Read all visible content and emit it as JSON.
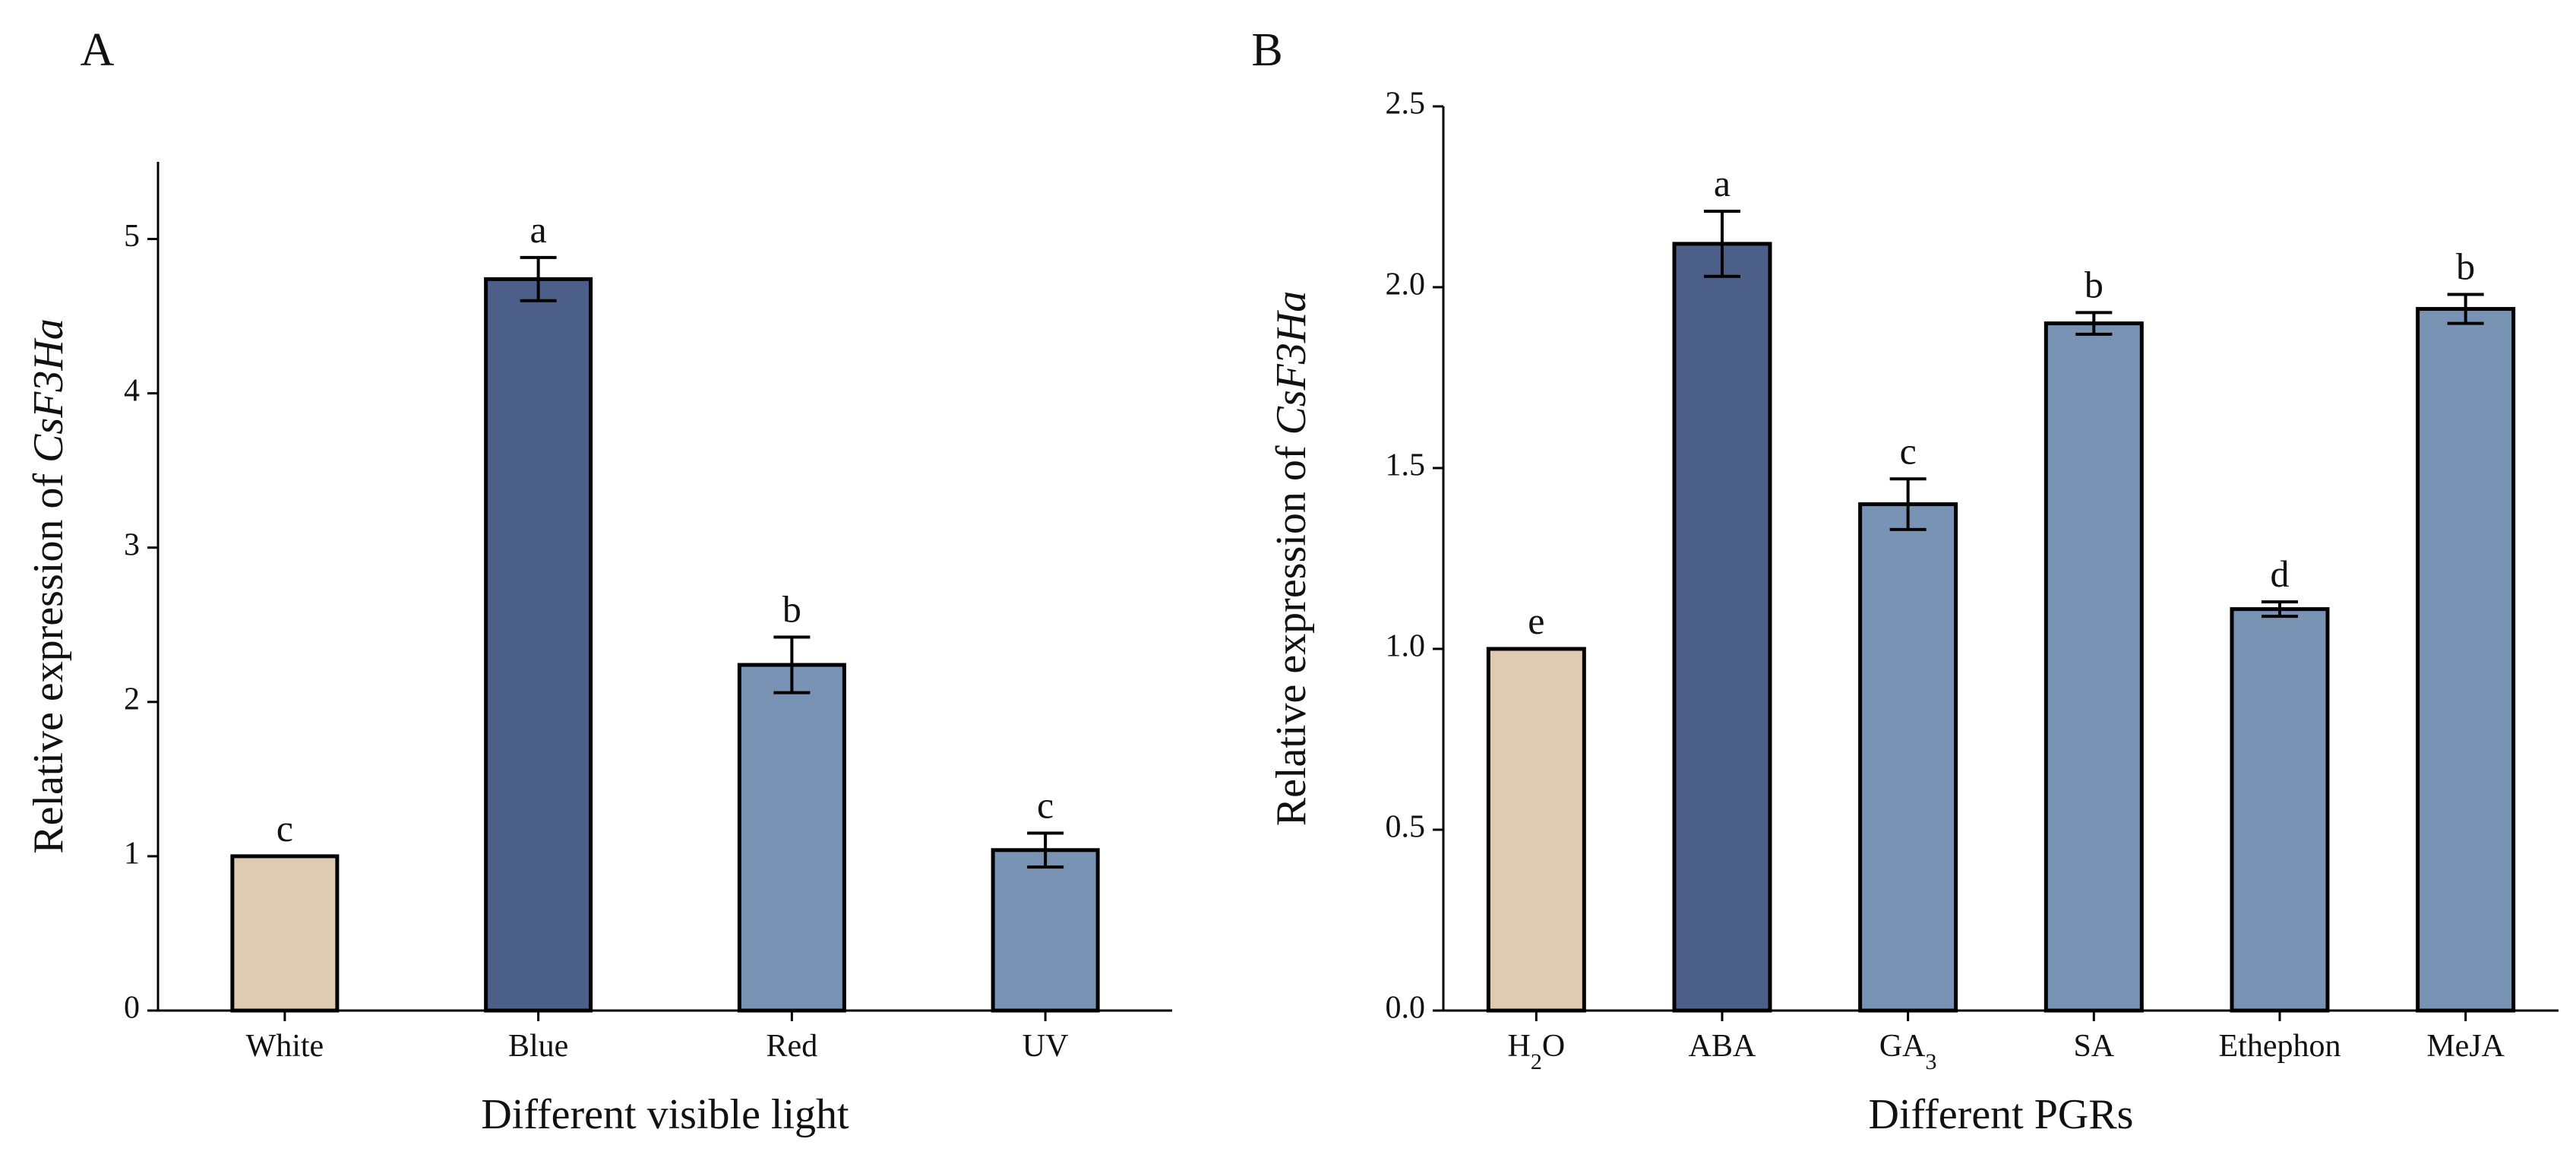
{
  "chart_data": [
    {
      "panel_label": "A",
      "type": "bar",
      "ylabel_prefix": "Relative expression of ",
      "ylabel_gene": "CsF3Ha",
      "xlabel": "Different visible light",
      "ylim": [
        0,
        5.5
      ],
      "yticks": [
        0,
        1,
        2,
        3,
        4,
        5
      ],
      "ytick_labels": [
        "0",
        "1",
        "2",
        "3",
        "4",
        "5"
      ],
      "categories": [
        {
          "base": "White",
          "sub": ""
        },
        {
          "base": "Blue",
          "sub": ""
        },
        {
          "base": "Red",
          "sub": ""
        },
        {
          "base": "UV",
          "sub": ""
        }
      ],
      "values": [
        1.0,
        4.74,
        2.24,
        1.04
      ],
      "errors": [
        0.0,
        0.14,
        0.18,
        0.11
      ],
      "significance": [
        "c",
        "a",
        "b",
        "c"
      ],
      "colors": [
        "#dfcab3",
        "#4b5f88",
        "#7893b3",
        "#7893b3"
      ]
    },
    {
      "panel_label": "B",
      "type": "bar",
      "ylabel_prefix": "Relative expression of ",
      "ylabel_gene": "CsF3Ha",
      "xlabel": "Different PGRs",
      "ylim": [
        0,
        2.5
      ],
      "yticks": [
        0.0,
        0.5,
        1.0,
        1.5,
        2.0,
        2.5
      ],
      "ytick_labels": [
        "0.0",
        "0.5",
        "1.0",
        "1.5",
        "2.0",
        "2.5"
      ],
      "categories": [
        {
          "base": "H",
          "sub": "2",
          "tail": "O"
        },
        {
          "base": "ABA",
          "sub": ""
        },
        {
          "base": "GA",
          "sub": "3"
        },
        {
          "base": "SA",
          "sub": ""
        },
        {
          "base": "Ethephon",
          "sub": ""
        },
        {
          "base": "MeJA",
          "sub": ""
        }
      ],
      "values": [
        1.0,
        2.12,
        1.4,
        1.9,
        1.11,
        1.94
      ],
      "errors": [
        0.0,
        0.09,
        0.07,
        0.03,
        0.02,
        0.04
      ],
      "significance": [
        "e",
        "a",
        "c",
        "b",
        "d",
        "b"
      ],
      "colors": [
        "#dfcab3",
        "#4b5f88",
        "#7893b3",
        "#7893b3",
        "#7893b3",
        "#7893b3"
      ]
    }
  ]
}
